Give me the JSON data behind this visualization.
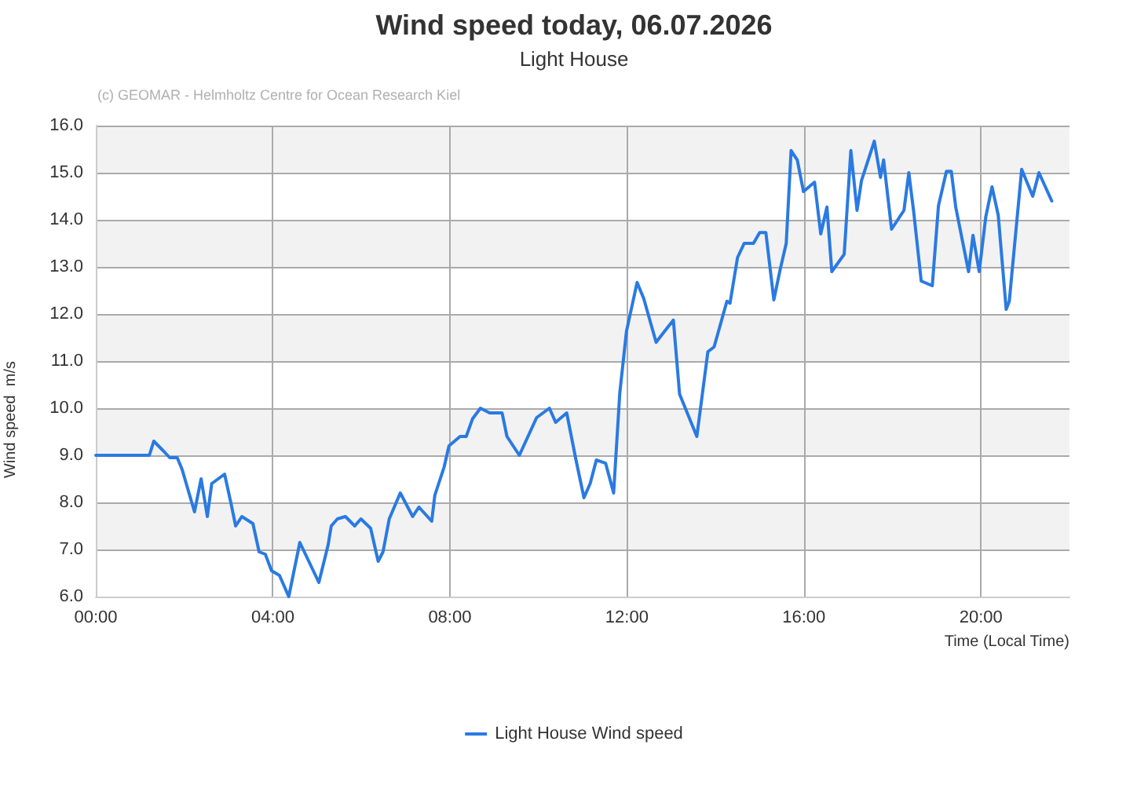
{
  "chart_data": {
    "type": "line",
    "title": "Wind speed today, 06.07.2026",
    "subtitle": "Light House",
    "xlabel": "Time (Local Time)",
    "ylabel": "Wind speed  m/s",
    "annotations": [
      "(c) GEOMAR - Helmholtz Centre for Ocean Research Kiel"
    ],
    "xlim": [
      0,
      22
    ],
    "xticks": [
      {
        "value": 0,
        "label": "00:00"
      },
      {
        "value": 4,
        "label": "04:00"
      },
      {
        "value": 8,
        "label": "08:00"
      },
      {
        "value": 12,
        "label": "12:00"
      },
      {
        "value": 16,
        "label": "16:00"
      },
      {
        "value": 20,
        "label": "20:00"
      }
    ],
    "ylim": [
      6,
      16
    ],
    "yticks": [
      {
        "value": 6,
        "label": "6.0"
      },
      {
        "value": 7,
        "label": "7.0"
      },
      {
        "value": 8,
        "label": "8.0"
      },
      {
        "value": 9,
        "label": "9.0"
      },
      {
        "value": 10,
        "label": "10.0"
      },
      {
        "value": 11,
        "label": "11.0"
      },
      {
        "value": 12,
        "label": "12.0"
      },
      {
        "value": 13,
        "label": "13.0"
      },
      {
        "value": 14,
        "label": "14.0"
      },
      {
        "value": 15,
        "label": "15.0"
      },
      {
        "value": 16,
        "label": "16.0"
      }
    ],
    "grid": true,
    "legend": "bottom",
    "marker": "none",
    "line_style": "solid",
    "series": [
      {
        "name": "Light House Wind speed",
        "color": "#2a7ae2",
        "x": [
          0,
          1.21,
          1.31,
          1.52,
          1.67,
          1.84,
          1.95,
          2.23,
          2.38,
          2.52,
          2.62,
          2.91,
          3.05,
          3.16,
          3.3,
          3.55,
          3.69,
          3.83,
          3.97,
          4.15,
          4.36,
          4.61,
          5.04,
          5.25,
          5.32,
          5.46,
          5.64,
          5.85,
          5.99,
          6.21,
          6.38,
          6.49,
          6.63,
          6.88,
          7.16,
          7.3,
          7.59,
          7.66,
          7.87,
          7.98,
          8.23,
          8.37,
          8.51,
          8.69,
          8.9,
          9.18,
          9.29,
          9.57,
          9.96,
          10.25,
          10.39,
          10.64,
          10.85,
          11.03,
          11.17,
          11.31,
          11.52,
          11.7,
          11.84,
          11.99,
          12.23,
          12.38,
          12.66,
          12.8,
          13.05,
          13.19,
          13.58,
          13.83,
          13.97,
          14.26,
          14.33,
          14.5,
          14.65,
          14.86,
          15.0,
          15.14,
          15.32,
          15.46,
          15.6,
          15.71,
          15.85,
          15.99,
          16.24,
          16.38,
          16.52,
          16.63,
          16.91,
          17.06,
          17.2,
          17.3,
          17.59,
          17.73,
          17.8,
          17.98,
          18.26,
          18.37,
          18.48,
          18.65,
          18.9,
          19.04,
          19.22,
          19.33,
          19.43,
          19.72,
          19.82,
          19.96,
          20.11,
          20.25,
          20.39,
          20.57,
          20.64,
          20.92,
          21.17,
          21.31,
          21.6
        ],
        "values": [
          9.0,
          9.0,
          9.3,
          9.1,
          8.95,
          8.95,
          8.7,
          7.8,
          8.5,
          7.7,
          8.4,
          8.6,
          8.0,
          7.5,
          7.7,
          7.55,
          6.95,
          6.9,
          6.55,
          6.45,
          6.0,
          7.15,
          6.3,
          7.1,
          7.5,
          7.65,
          7.7,
          7.5,
          7.65,
          7.45,
          6.75,
          6.95,
          7.65,
          8.2,
          7.7,
          7.9,
          7.6,
          8.15,
          8.75,
          9.2,
          9.4,
          9.4,
          9.77,
          10.0,
          9.9,
          9.9,
          9.4,
          9.0,
          9.8,
          10.0,
          9.7,
          9.9,
          8.9,
          8.1,
          8.4,
          8.9,
          8.83,
          8.2,
          10.33,
          11.63,
          12.67,
          12.33,
          11.4,
          11.57,
          11.87,
          10.3,
          9.4,
          11.2,
          11.3,
          12.27,
          12.23,
          13.2,
          13.5,
          13.5,
          13.73,
          13.73,
          12.3,
          12.93,
          13.5,
          15.47,
          15.27,
          14.6,
          14.8,
          13.7,
          14.27,
          12.9,
          13.27,
          15.47,
          14.2,
          14.83,
          15.67,
          14.9,
          15.27,
          13.8,
          14.2,
          15.0,
          14.17,
          12.7,
          12.6,
          14.3,
          15.03,
          15.03,
          14.27,
          12.9,
          13.67,
          12.9,
          14.07,
          14.7,
          14.1,
          12.1,
          12.27,
          15.07,
          14.5,
          15.0,
          14.4
        ]
      }
    ]
  }
}
